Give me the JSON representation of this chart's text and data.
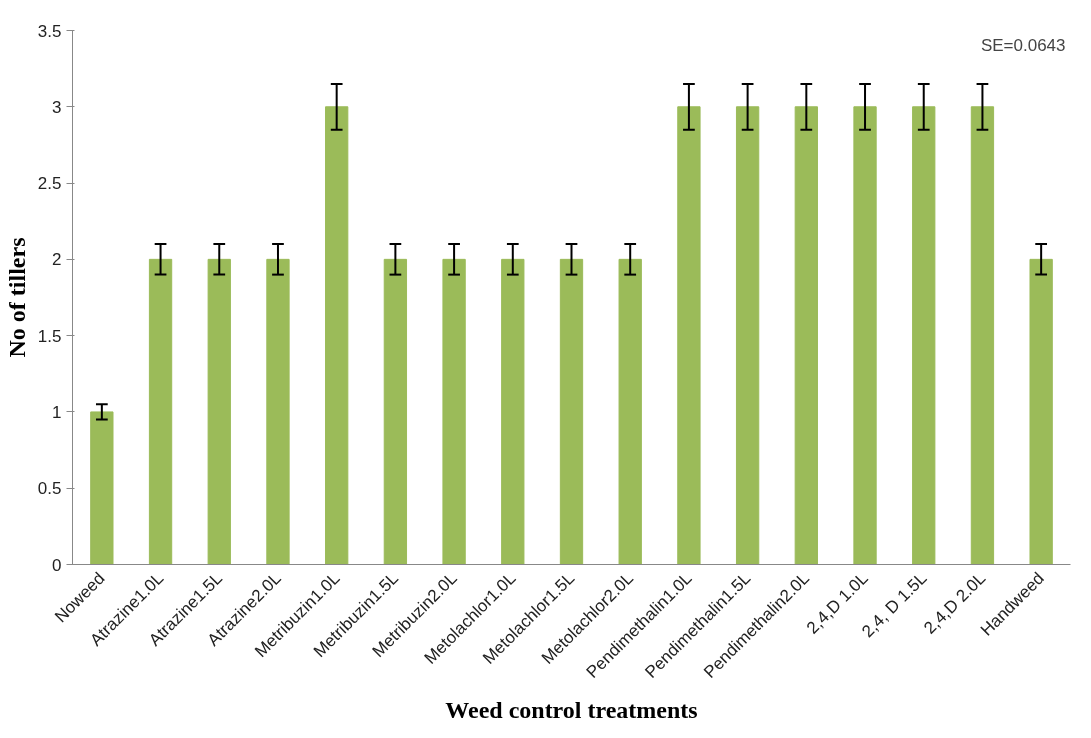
{
  "chart_data": {
    "type": "bar",
    "xlabel": "Weed control treatments",
    "ylabel": "No of tillers",
    "categories": [
      "Noweed",
      "Atrazine1.0L",
      "Atrazine1.5L",
      "Atrazine2.0L",
      "Metribuzin1.0L",
      "Metribuzin1.5L",
      "Metribuzin2.0L",
      "Metolachlor1.0L",
      "Metolachlor1.5L",
      "Metolachlor2.0L",
      "Pendimethalin1.0L",
      "Pendimethalin1.5L",
      "Pendimethalin2.0L",
      "2,4,D 1.0L",
      "2,4, D 1.5L",
      "2,4,D 2.0L",
      "Handweed"
    ],
    "values": [
      1,
      2,
      2,
      2,
      3,
      2,
      2,
      2,
      2,
      2,
      3,
      3,
      3,
      3,
      3,
      3,
      2
    ],
    "errors": [
      0.05,
      0.1,
      0.1,
      0.1,
      0.15,
      0.1,
      0.1,
      0.1,
      0.1,
      0.1,
      0.15,
      0.15,
      0.15,
      0.15,
      0.15,
      0.15,
      0.1
    ],
    "color": "#9bbb59",
    "ylim": [
      0,
      3.5
    ],
    "yticks": [
      0,
      0.5,
      1,
      1.5,
      2,
      2.5,
      3,
      3.5
    ],
    "grid": false,
    "annotations": [
      "SE=0.0643"
    ]
  }
}
